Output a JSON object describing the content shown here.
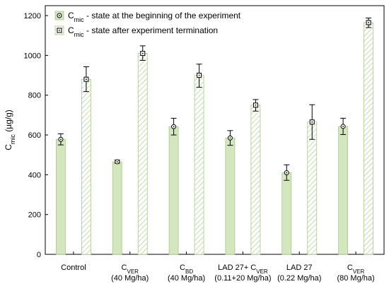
{
  "chart_data": {
    "type": "bar",
    "ylabel": {
      "main": "C",
      "sub": "mic",
      "rest": " (µg/g)"
    },
    "ylim": [
      0,
      1250
    ],
    "yticks": [
      0,
      200,
      400,
      600,
      800,
      1000,
      1200
    ],
    "grid": false,
    "legend_position": "top-left",
    "categories": [
      {
        "line1": {
          "main": "Control",
          "sub": "",
          "rest": ""
        },
        "line2": ""
      },
      {
        "line1": {
          "main": "C",
          "sub": "VER",
          "rest": ""
        },
        "line2": "(40 Mg/ha)"
      },
      {
        "line1": {
          "main": "C",
          "sub": "BD",
          "rest": ""
        },
        "line2": "(40 Mg/ha)"
      },
      {
        "line1": {
          "main": "LAD 27+ C",
          "sub": "VER",
          "rest": ""
        },
        "line2": "(0.11+20 Mg/ha)"
      },
      {
        "line1": {
          "main": "LAD 27",
          "sub": "",
          "rest": ""
        },
        "line2": "(0.22 Mg/ha)"
      },
      {
        "line1": {
          "main": "C",
          "sub": "VER",
          "rest": ""
        },
        "line2": "(80 Mg/ha)"
      }
    ],
    "series": [
      {
        "name": {
          "main": "C",
          "sub": "mic",
          "rest": " - state at the beginning of the experiment"
        },
        "marker": "circle",
        "fill": "solid",
        "color": "#d3e6bd",
        "edge": "#a9c98a",
        "values": [
          578,
          465,
          642,
          585,
          410,
          643
        ],
        "err_low": [
          550,
          458,
          600,
          548,
          372,
          602
        ],
        "err_high": [
          606,
          474,
          684,
          622,
          450,
          684
        ]
      },
      {
        "name": {
          "main": "C",
          "sub": "mic",
          "rest": " - state after experiment termination"
        },
        "marker": "square",
        "fill": "hatched",
        "color": "#b9d69b",
        "edge": "#a9c98a",
        "values": [
          880,
          1010,
          900,
          750,
          665,
          1165
        ],
        "err_low": [
          818,
          975,
          840,
          720,
          578,
          1140
        ],
        "err_high": [
          943,
          1048,
          956,
          778,
          752,
          1188
        ]
      }
    ]
  }
}
